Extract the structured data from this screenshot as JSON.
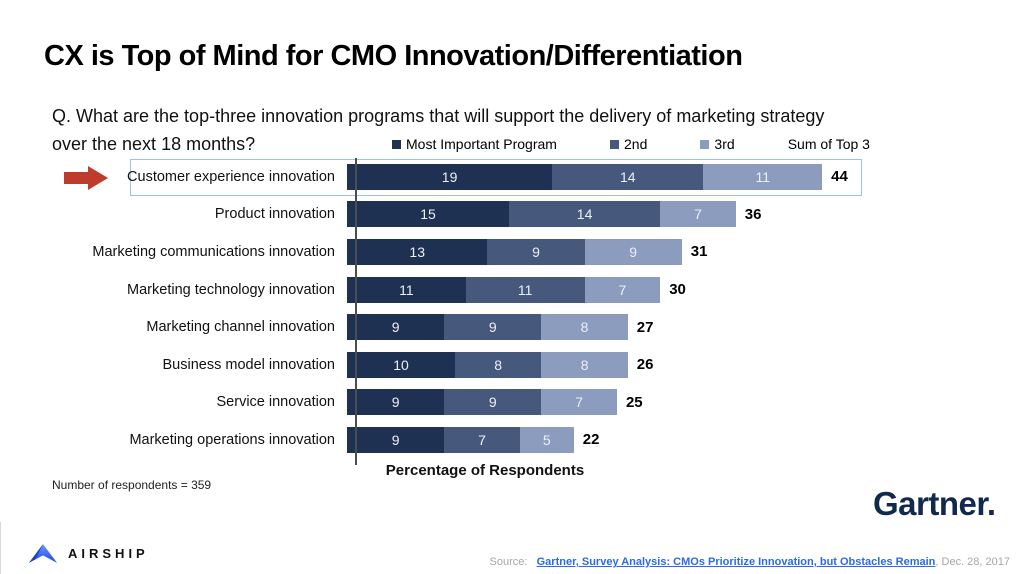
{
  "slide": {
    "title": "CX is Top of Mind for CMO Innovation/Differentiation"
  },
  "question": {
    "line1": "Q. What are the top-three innovation programs that will support the delivery of marketing strategy",
    "line2": "over the next 18 months?"
  },
  "chart_data": {
    "type": "bar",
    "orientation": "horizontal",
    "stacked": true,
    "categories": [
      "Customer experience innovation",
      "Product innovation",
      "Marketing communications innovation",
      "Marketing technology innovation",
      "Marketing channel innovation",
      "Business model innovation",
      "Service innovation",
      "Marketing operations innovation"
    ],
    "series": [
      {
        "name": "Most Important Program",
        "color": "#1f3152",
        "values": [
          19,
          15,
          13,
          11,
          9,
          10,
          9,
          9
        ]
      },
      {
        "name": "2nd",
        "color": "#46597c",
        "values": [
          14,
          14,
          9,
          11,
          9,
          8,
          9,
          7
        ]
      },
      {
        "name": "3rd",
        "color": "#8c9cbe",
        "values": [
          11,
          7,
          9,
          7,
          8,
          8,
          7,
          5
        ]
      }
    ],
    "sum_header": "Sum of Top 3",
    "sum_labels": [
      44,
      36,
      31,
      30,
      27,
      26,
      25,
      22
    ],
    "highlight_category": "Customer experience innovation",
    "xlabel": "Percentage of Respondents",
    "note": "Number of respondents = 359",
    "value_labels_shown": true,
    "grid": false,
    "legend_position": "top"
  },
  "branding": {
    "gartner_logo_text": "Gartner.",
    "airship_logo_text": "AIRSHIP"
  },
  "footer": {
    "source_prefix": "Source:",
    "source_link": "Gartner, Survey Analysis: CMOs Prioritize Innovation, but Obstacles Remain",
    "source_suffix": ", Dec. 28, 2017"
  },
  "colors": {
    "highlight_border": "#9cc3e6",
    "arrow_red": "#bf3b2b",
    "gartner_navy": "#12294e",
    "link_blue": "#2b6be4",
    "airship_blue": "#2f62f0"
  }
}
